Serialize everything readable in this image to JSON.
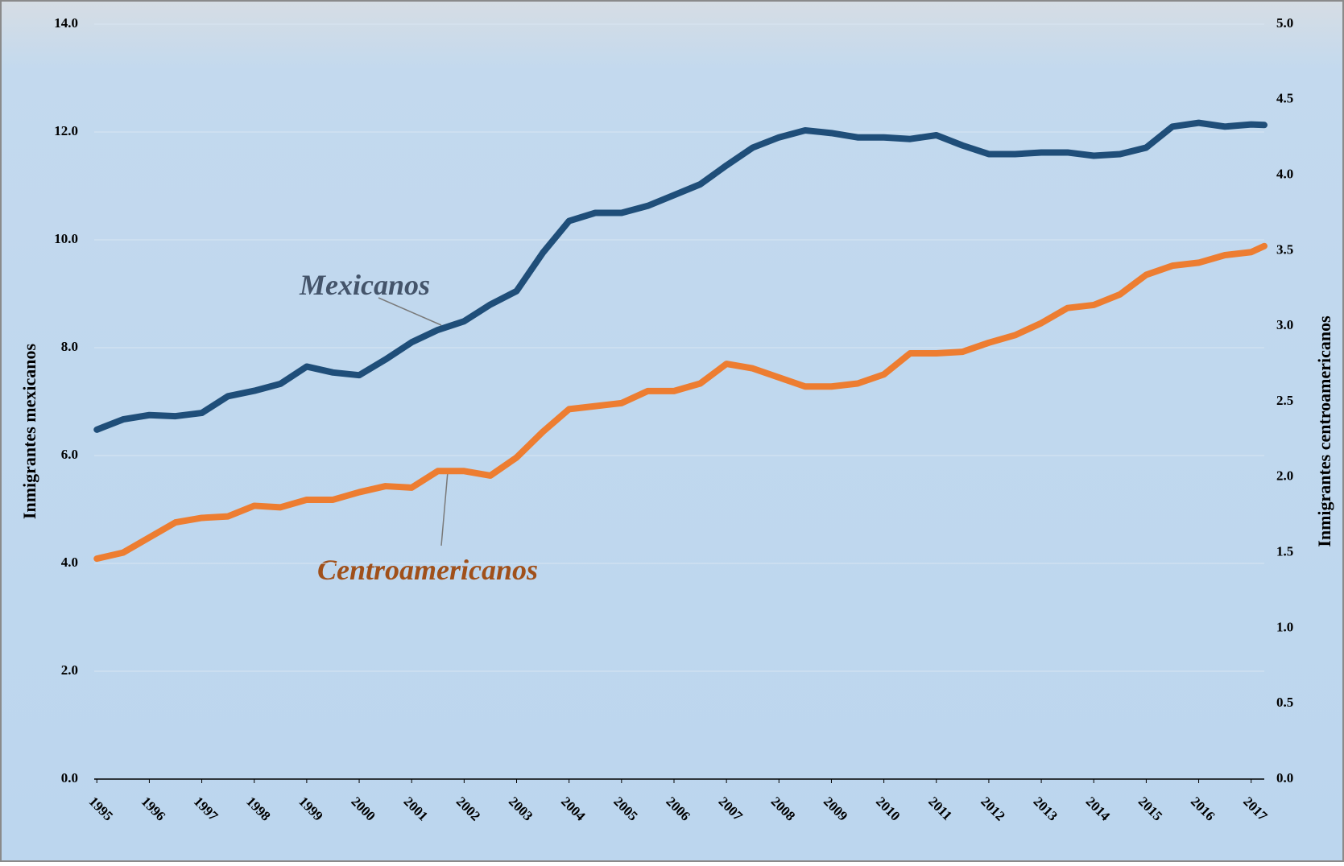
{
  "chart_data": {
    "type": "line",
    "y_label": "Inmigrantes mexicanos",
    "y2_label": "Inmigrantes centroamericanos",
    "annotations": [
      "Mexicanos",
      "Centroamericanos"
    ],
    "x": [
      1995,
      1995.5,
      1996,
      1996.5,
      1997,
      1997.5,
      1998,
      1998.5,
      1999,
      1999.5,
      2000,
      2000.5,
      2001,
      2001.5,
      2002,
      2002.5,
      2003,
      2003.5,
      2004,
      2004.5,
      2005,
      2005.5,
      2006,
      2006.5,
      2007,
      2007.5,
      2008,
      2008.5,
      2009,
      2009.5,
      2010,
      2010.5,
      2011,
      2011.5,
      2012,
      2012.5,
      2013,
      2013.5,
      2014,
      2014.5,
      2015,
      2015.5,
      2016,
      2016.5,
      2017,
      2017.25
    ],
    "xlim": [
      1994.95,
      2017.25
    ],
    "xticks": [
      1995,
      1996,
      1997,
      1998,
      1999,
      2000,
      2001,
      2002,
      2003,
      2004,
      2005,
      2006,
      2007,
      2008,
      2009,
      2010,
      2011,
      2012,
      2013,
      2014,
      2015,
      2016,
      2017
    ],
    "ylim": [
      0,
      14
    ],
    "yticks": [
      {
        "value": 0,
        "label": "0.0"
      },
      {
        "value": 2,
        "label": "2.0"
      },
      {
        "value": 4,
        "label": "4.0"
      },
      {
        "value": 6,
        "label": "6.0"
      },
      {
        "value": 8,
        "label": "8.0"
      },
      {
        "value": 10,
        "label": "10.0"
      },
      {
        "value": 12,
        "label": "12.0"
      },
      {
        "value": 14,
        "label": "14.0"
      }
    ],
    "y2lim": [
      0,
      5
    ],
    "y2ticks": [
      {
        "value": 0,
        "label": "0.0"
      },
      0.5,
      {
        "value": 1,
        "label": "1.0"
      },
      1.5,
      {
        "value": 2,
        "label": "2.0"
      },
      2.5,
      {
        "value": 3,
        "label": "3.0"
      },
      3.5,
      {
        "value": 4,
        "label": "4.0"
      },
      4.5,
      {
        "value": 5,
        "label": "5.0"
      }
    ],
    "grid": true,
    "series": [
      {
        "name": "Mexicanos",
        "color": "#1f4e79",
        "values": [
          6.48,
          6.67,
          6.75,
          6.73,
          6.79,
          7.1,
          7.2,
          7.33,
          7.65,
          7.54,
          7.49,
          7.78,
          8.1,
          8.33,
          8.49,
          8.8,
          9.05,
          9.76,
          10.35,
          10.5,
          10.5,
          10.63,
          10.83,
          11.03,
          11.38,
          11.71,
          11.9,
          12.03,
          11.98,
          11.9,
          11.9,
          11.87,
          11.94,
          11.75,
          11.59,
          11.59,
          11.62,
          11.62,
          11.56,
          11.59,
          11.71,
          12.1,
          12.17,
          12.1,
          12.14,
          12.13
        ]
      },
      {
        "name": "Centroamericanos",
        "color": "#ed7d31",
        "axis": "y2",
        "values": [
          1.46,
          1.5,
          1.6,
          1.7,
          1.73,
          1.74,
          1.81,
          1.8,
          1.85,
          1.85,
          1.9,
          1.94,
          1.93,
          2.04,
          2.04,
          2.01,
          2.13,
          2.3,
          2.45,
          2.47,
          2.49,
          2.57,
          2.57,
          2.62,
          2.75,
          2.72,
          2.66,
          2.6,
          2.6,
          2.62,
          2.68,
          2.82,
          2.82,
          2.83,
          2.89,
          2.94,
          3.02,
          3.12,
          3.14,
          3.21,
          3.34,
          3.4,
          3.42,
          3.47,
          3.49,
          3.53
        ]
      }
    ]
  }
}
